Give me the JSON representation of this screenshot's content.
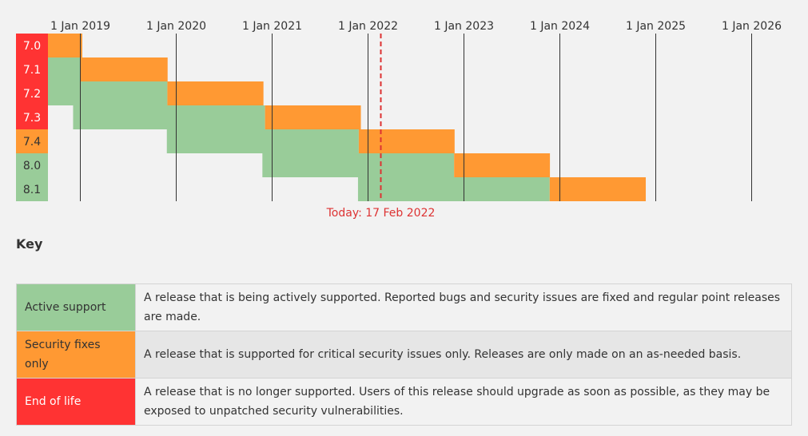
{
  "timeline": {
    "start": "2018-09-01",
    "end": "2026-03-01",
    "year_ticks": [
      {
        "date": "2019-01-01",
        "label": "1 Jan 2019"
      },
      {
        "date": "2020-01-01",
        "label": "1 Jan 2020"
      },
      {
        "date": "2021-01-01",
        "label": "1 Jan 2021"
      },
      {
        "date": "2022-01-01",
        "label": "1 Jan 2022"
      },
      {
        "date": "2023-01-01",
        "label": "1 Jan 2023"
      },
      {
        "date": "2024-01-01",
        "label": "1 Jan 2024"
      },
      {
        "date": "2025-01-01",
        "label": "1 Jan 2025"
      },
      {
        "date": "2026-01-01",
        "label": "1 Jan 2026"
      }
    ],
    "today": {
      "date": "2022-02-17",
      "label": "Today: 17 Feb 2022"
    },
    "branches": [
      {
        "name": "7.0",
        "status": "eol",
        "release": "2015-12-03",
        "active_end": "2018-01-01",
        "security_end": "2019-01-10"
      },
      {
        "name": "7.1",
        "status": "eol",
        "release": "2016-12-01",
        "active_end": "2019-01-01",
        "security_end": "2019-12-01"
      },
      {
        "name": "7.2",
        "status": "eol",
        "release": "2017-11-30",
        "active_end": "2019-11-30",
        "security_end": "2020-11-30"
      },
      {
        "name": "7.3",
        "status": "eol",
        "release": "2018-12-06",
        "active_end": "2020-12-06",
        "security_end": "2021-12-06"
      },
      {
        "name": "7.4",
        "status": "security",
        "release": "2019-11-28",
        "active_end": "2021-11-28",
        "security_end": "2022-11-28"
      },
      {
        "name": "8.0",
        "status": "active",
        "release": "2020-11-26",
        "active_end": "2022-11-26",
        "security_end": "2023-11-26"
      },
      {
        "name": "8.1",
        "status": "active",
        "release": "2021-11-25",
        "active_end": "2023-11-25",
        "security_end": "2024-11-25"
      }
    ]
  },
  "colors": {
    "active": "#99cc99",
    "security": "#ff9933",
    "eol": "#ff3333",
    "today_line": "#dd3333",
    "year_line": "#333333"
  },
  "key": {
    "title": "Key",
    "rows": [
      {
        "label": "Active support",
        "description": "A release that is being actively supported. Reported bugs and security issues are fixed and regular point releases are made."
      },
      {
        "label": "Security fixes only",
        "description": "A release that is supported for critical security issues only. Releases are only made on an as-needed basis."
      },
      {
        "label": "End of life",
        "description": "A release that is no longer supported. Users of this release should upgrade as soon as possible, as they may be exposed to unpatched security vulnerabilities."
      }
    ]
  }
}
